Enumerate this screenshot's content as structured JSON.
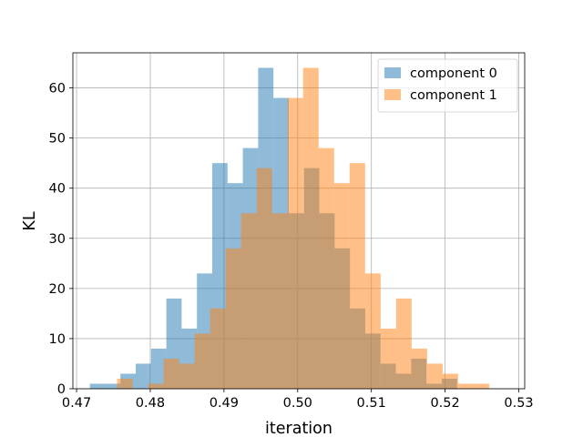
{
  "chart_data": {
    "type": "histogram",
    "title": "",
    "xlabel": "iteration",
    "ylabel": "KL",
    "xlim": [
      0.4695,
      0.5308
    ],
    "ylim": [
      0,
      67
    ],
    "xticks": [
      "0.47",
      "0.48",
      "0.49",
      "0.50",
      "0.51",
      "0.52",
      "0.53"
    ],
    "xtick_values": [
      0.47,
      0.48,
      0.49,
      0.5,
      0.51,
      0.52,
      0.53
    ],
    "yticks": [
      "0",
      "10",
      "20",
      "30",
      "40",
      "50",
      "60"
    ],
    "ytick_values": [
      0,
      10,
      20,
      30,
      40,
      50,
      60
    ],
    "grid": true,
    "legend_position": "top-right",
    "series": [
      {
        "name": "component 0",
        "color": "#1f77b4",
        "bin_start": 0.4718,
        "bin_width": 0.002076,
        "counts": [
          1,
          1,
          3,
          5,
          8,
          18,
          12,
          23,
          45,
          41,
          48,
          64,
          58,
          35,
          44,
          35,
          28,
          16,
          11,
          5,
          3,
          6,
          1,
          2
        ]
      },
      {
        "name": "component 1",
        "color": "#ff7f0e",
        "bin_start": 0.4755,
        "bin_width": 0.002103,
        "counts": [
          2,
          0,
          1,
          6,
          5,
          11,
          16,
          28,
          35,
          44,
          35,
          58,
          64,
          48,
          41,
          45,
          23,
          12,
          18,
          8,
          5,
          3,
          1,
          1
        ]
      }
    ]
  }
}
